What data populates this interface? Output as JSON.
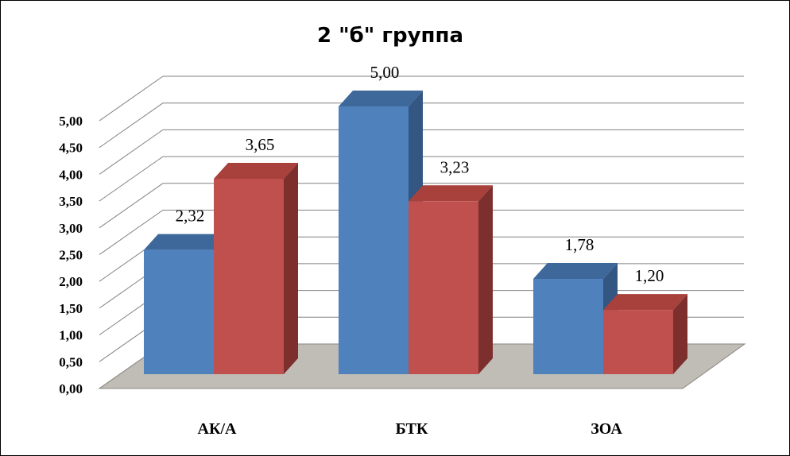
{
  "chart_data": {
    "type": "bar",
    "title": "2 \"б\" группа",
    "categories": [
      "АК/А",
      "БТК",
      "ЗОА"
    ],
    "series": [
      {
        "values": [
          2.32,
          5.0,
          1.78
        ],
        "labels": [
          "2,32",
          "5,00",
          "1,78"
        ],
        "color": "#4f81bd"
      },
      {
        "values": [
          3.65,
          3.23,
          1.2
        ],
        "labels": [
          "3,65",
          "3,23",
          "1,20"
        ],
        "color": "#c0504d"
      }
    ],
    "y_ticks": [
      "0,00",
      "0,50",
      "1,00",
      "1,50",
      "2,00",
      "2,50",
      "3,00",
      "3,50",
      "4,00",
      "4,50",
      "5,00"
    ],
    "ylim": [
      0,
      5
    ],
    "grid": true,
    "style": "3d-clustered-column",
    "colors": {
      "floor": "#c0bcb6",
      "gridline": "#808080",
      "series1_top": "#3e679a",
      "series1_side": "#335683",
      "series2_top": "#a8403c",
      "series2_side": "#7d2f2d"
    }
  }
}
